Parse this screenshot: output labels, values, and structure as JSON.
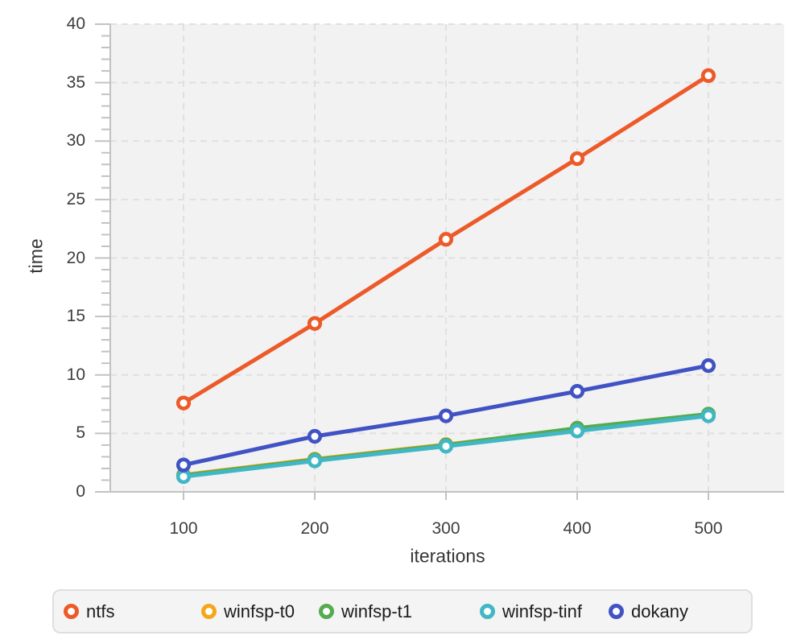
{
  "chart_data": {
    "type": "line",
    "title": "",
    "xlabel": "iterations",
    "ylabel": "time",
    "x": [
      100,
      200,
      300,
      400,
      500
    ],
    "x_tick_labels": [
      "100",
      "200",
      "300",
      "400",
      "500"
    ],
    "y_tick_values": [
      0,
      5,
      10,
      15,
      20,
      25,
      30,
      35,
      40
    ],
    "y_minor_tick_step": 1,
    "ylim": [
      0,
      40
    ],
    "grid": "dashed",
    "legend_position": "bottom",
    "series": [
      {
        "name": "ntfs",
        "color": "#ed5a29",
        "values": [
          7.6,
          14.4,
          21.6,
          28.5,
          35.6
        ]
      },
      {
        "name": "winfsp-t0",
        "color": "#f4a71d",
        "values": [
          1.45,
          2.8,
          4.05,
          5.35,
          6.6
        ]
      },
      {
        "name": "winfsp-t1",
        "color": "#55ab4d",
        "values": [
          1.4,
          2.75,
          4.0,
          5.45,
          6.65
        ]
      },
      {
        "name": "winfsp-tinf",
        "color": "#41b7c6",
        "values": [
          1.3,
          2.65,
          3.9,
          5.2,
          6.5
        ]
      },
      {
        "name": "dokany",
        "color": "#4153c4",
        "values": [
          2.3,
          4.75,
          6.5,
          8.6,
          10.8
        ]
      }
    ],
    "style": {
      "plot_bg": "#f2f2f2",
      "grid_color": "#e0e0e0",
      "axis_color": "#c2c2c2",
      "tick_label_color": "#3e3e3e",
      "line_width": 5,
      "marker_fill": "#ffffff",
      "legend_bg": "#f4f4f4",
      "legend_border": "#dedede",
      "legend_text_color": "#1c1c1c"
    }
  }
}
